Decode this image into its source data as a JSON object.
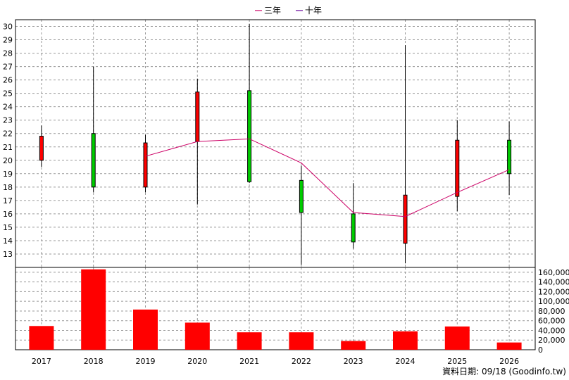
{
  "chart_data": {
    "type": "candlestick+bar",
    "legend": [
      {
        "label": "三年",
        "color": "#cc0066"
      },
      {
        "label": "十年",
        "color": "#660099"
      }
    ],
    "colors": {
      "up": "#ff0000",
      "down": "#00cc00",
      "volume": "#ff0000",
      "line": "#cc0066",
      "grid": "#999999"
    },
    "categories": [
      "2017",
      "2018",
      "2019",
      "2020",
      "2021",
      "2022",
      "2023",
      "2024",
      "2025",
      "2026"
    ],
    "price_axis": {
      "ylim": [
        12,
        30.5
      ],
      "ticks": [
        13,
        14,
        15,
        16,
        17,
        18,
        19,
        20,
        21,
        22,
        23,
        24,
        25,
        26,
        27,
        28,
        29,
        30
      ]
    },
    "candles": [
      {
        "open": 20.0,
        "close": 21.8,
        "high": 22.6,
        "low": 19.5
      },
      {
        "open": 22.0,
        "close": 18.0,
        "high": 27.0,
        "low": 17.6
      },
      {
        "open": 18.0,
        "close": 21.3,
        "high": 21.9,
        "low": 17.6
      },
      {
        "open": 21.4,
        "close": 25.1,
        "high": 26.1,
        "low": 16.7
      },
      {
        "open": 25.2,
        "close": 18.4,
        "high": 30.2,
        "low": 18.3
      },
      {
        "open": 18.5,
        "close": 16.1,
        "high": 19.6,
        "low": 12.2
      },
      {
        "open": 16.0,
        "close": 13.9,
        "high": 18.3,
        "low": 13.4
      },
      {
        "open": 13.8,
        "close": 17.4,
        "high": 28.6,
        "low": 12.3
      },
      {
        "open": 17.3,
        "close": 21.5,
        "high": 23.0,
        "low": 16.2
      },
      {
        "open": 21.5,
        "close": 19.0,
        "high": 22.9,
        "low": 17.4
      }
    ],
    "avg_line": [
      null,
      null,
      20.3,
      21.4,
      21.6,
      19.8,
      16.1,
      15.8,
      17.6,
      19.3
    ],
    "volume_axis": {
      "ylim": [
        0,
        170000
      ],
      "ticks": [
        0,
        20000,
        40000,
        60000,
        80000,
        100000,
        120000,
        140000,
        160000
      ],
      "tick_labels": [
        "0",
        "20,000",
        "40,000",
        "60,000",
        "80,000",
        "100,000",
        "120,000",
        "140,000",
        "160,000"
      ]
    },
    "volume": [
      49000,
      166000,
      83000,
      56000,
      36000,
      36000,
      18000,
      38000,
      48000,
      15000
    ]
  },
  "source_label": "資料日期: 09/18 (Goodinfo.tw)"
}
